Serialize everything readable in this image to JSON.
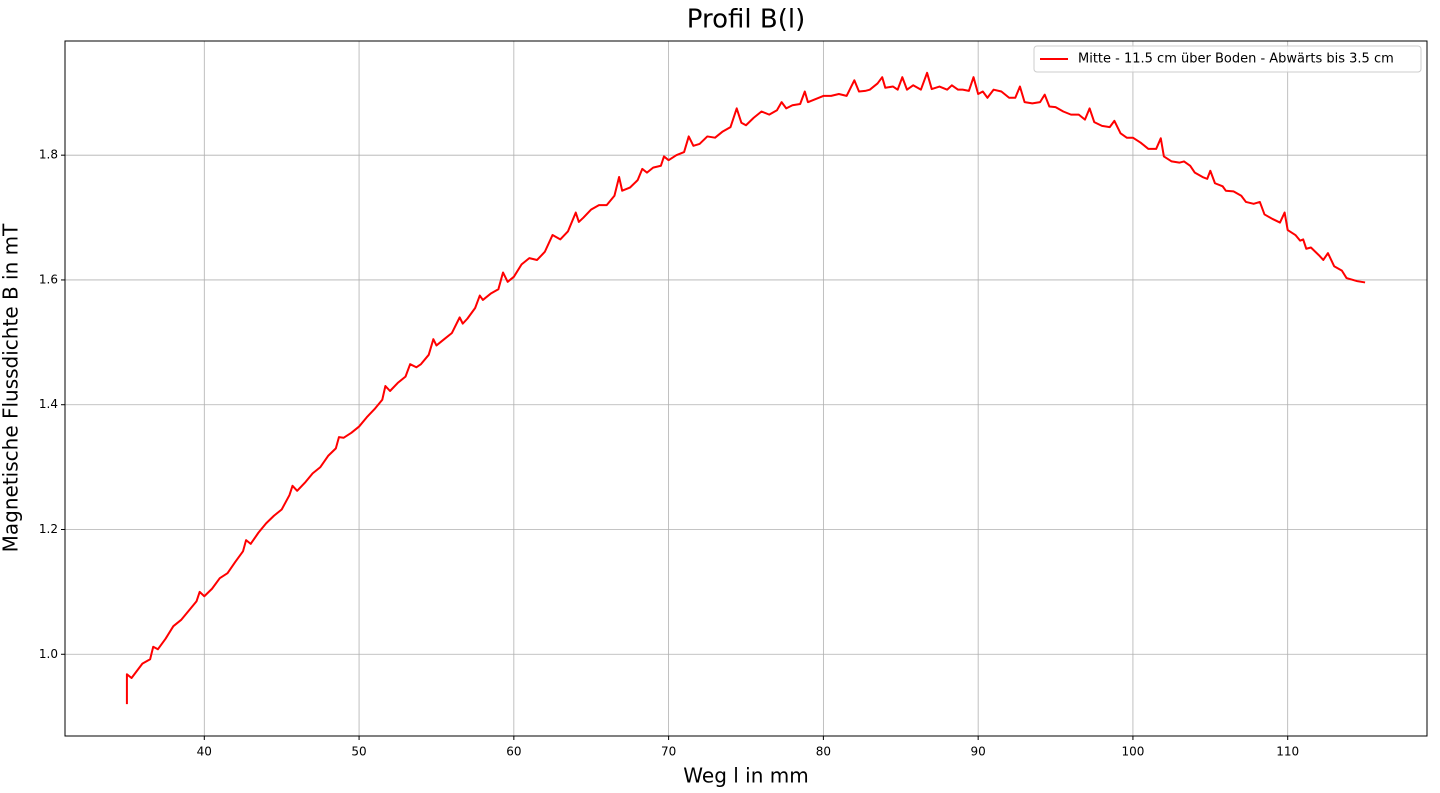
{
  "chart_data": {
    "type": "line",
    "title": "Profil B(l)",
    "xlabel": "Weg l in mm",
    "ylabel": "Magnetische Flussdichte B in mT",
    "xlim": [
      31,
      119
    ],
    "ylim": [
      0.869,
      1.983
    ],
    "xticks": [
      40,
      50,
      60,
      70,
      80,
      90,
      100,
      110
    ],
    "yticks": [
      {
        "value": 1.0,
        "label": "1.0"
      },
      {
        "value": 1.2,
        "label": "1.2"
      },
      {
        "value": 1.4,
        "label": "1.4"
      },
      {
        "value": 1.6,
        "label": "1.6"
      },
      {
        "value": 1.8,
        "label": "1.8"
      }
    ],
    "grid": true,
    "legend": "upper right",
    "x": [
      35.0,
      35.0,
      35.3,
      36,
      36.5,
      36.7,
      37,
      37.5,
      38,
      38.5,
      39,
      39.5,
      39.7,
      40,
      40.5,
      41,
      41.5,
      42,
      42.5,
      42.7,
      43,
      43.5,
      44,
      44.5,
      45,
      45.5,
      45.7,
      46,
      46.5,
      47,
      47.5,
      48,
      48.5,
      48.7,
      49,
      49.5,
      50,
      50.5,
      51,
      51.5,
      51.7,
      52,
      52.5,
      53,
      53.3,
      53.7,
      54,
      54.5,
      54.8,
      55,
      55.5,
      56,
      56.5,
      56.7,
      57,
      57.5,
      57.8,
      58,
      58.5,
      59,
      59.3,
      59.6,
      60,
      60.5,
      61,
      61.5,
      62,
      62.5,
      63,
      63.5,
      64,
      64.2,
      64.5,
      65,
      65.5,
      66,
      66.5,
      66.8,
      67,
      67.5,
      68,
      68.3,
      68.6,
      69,
      69.5,
      69.7,
      70,
      70.5,
      71,
      71.3,
      71.6,
      72,
      72.5,
      73,
      73.5,
      74,
      74.4,
      74.7,
      75,
      75.5,
      76,
      76.5,
      77,
      77.3,
      77.6,
      78,
      78.5,
      78.8,
      79,
      79.5,
      80,
      80.5,
      81,
      81.5,
      82,
      82.3,
      82.7,
      83,
      83.5,
      83.8,
      84,
      84.5,
      84.8,
      85.1,
      85.4,
      85.8,
      86.3,
      86.7,
      87,
      87.5,
      88,
      88.3,
      88.7,
      89,
      89.4,
      89.7,
      90,
      90.3,
      90.6,
      91,
      91.5,
      92,
      92.4,
      92.7,
      93,
      93.5,
      94,
      94.3,
      94.6,
      95,
      95.5,
      96,
      96.5,
      96.9,
      97.2,
      97.5,
      98,
      98.5,
      98.8,
      99.2,
      99.6,
      100,
      100.5,
      101,
      101.5,
      101.8,
      102,
      102.5,
      103,
      103.3,
      103.7,
      104,
      104.5,
      104.8,
      105,
      105.3,
      105.8,
      106,
      106.5,
      107,
      107.3,
      107.8,
      108.2,
      108.5,
      109,
      109.5,
      109.8,
      110,
      110.5,
      110.8,
      111,
      111.2,
      111.5,
      112,
      112.3,
      112.6,
      113,
      113.5,
      113.8,
      114.5,
      115
    ],
    "series": [
      {
        "name": "Mitte - 11.5 cm über Boden - Abwärts bis 3.5 cm",
        "color": "#ff0000",
        "values": [
          0.92,
          0.968,
          0.962,
          0.985,
          0.992,
          1.012,
          1.008,
          1.025,
          1.045,
          1.055,
          1.07,
          1.085,
          1.1,
          1.093,
          1.105,
          1.122,
          1.13,
          1.148,
          1.165,
          1.183,
          1.177,
          1.195,
          1.21,
          1.222,
          1.232,
          1.255,
          1.27,
          1.262,
          1.275,
          1.29,
          1.3,
          1.318,
          1.33,
          1.348,
          1.347,
          1.355,
          1.365,
          1.38,
          1.393,
          1.408,
          1.43,
          1.422,
          1.435,
          1.445,
          1.465,
          1.46,
          1.465,
          1.48,
          1.505,
          1.495,
          1.505,
          1.515,
          1.54,
          1.53,
          1.538,
          1.555,
          1.575,
          1.568,
          1.578,
          1.585,
          1.612,
          1.597,
          1.605,
          1.625,
          1.635,
          1.632,
          1.645,
          1.672,
          1.665,
          1.678,
          1.708,
          1.693,
          1.7,
          1.713,
          1.72,
          1.72,
          1.735,
          1.765,
          1.743,
          1.748,
          1.76,
          1.778,
          1.772,
          1.78,
          1.783,
          1.798,
          1.792,
          1.8,
          1.805,
          1.83,
          1.815,
          1.818,
          1.83,
          1.828,
          1.838,
          1.845,
          1.875,
          1.852,
          1.848,
          1.86,
          1.87,
          1.865,
          1.872,
          1.885,
          1.875,
          1.88,
          1.882,
          1.902,
          1.885,
          1.89,
          1.895,
          1.895,
          1.898,
          1.895,
          1.92,
          1.902,
          1.903,
          1.905,
          1.915,
          1.925,
          1.908,
          1.91,
          1.905,
          1.925,
          1.905,
          1.912,
          1.905,
          1.932,
          1.906,
          1.91,
          1.905,
          1.912,
          1.905,
          1.905,
          1.903,
          1.925,
          1.898,
          1.902,
          1.892,
          1.905,
          1.902,
          1.892,
          1.892,
          1.91,
          1.885,
          1.883,
          1.885,
          1.897,
          1.878,
          1.877,
          1.87,
          1.865,
          1.865,
          1.857,
          1.875,
          1.853,
          1.847,
          1.845,
          1.855,
          1.835,
          1.828,
          1.828,
          1.82,
          1.81,
          1.81,
          1.827,
          1.798,
          1.79,
          1.788,
          1.79,
          1.783,
          1.772,
          1.765,
          1.762,
          1.775,
          1.755,
          1.75,
          1.743,
          1.742,
          1.735,
          1.725,
          1.722,
          1.725,
          1.705,
          1.698,
          1.692,
          1.708,
          1.68,
          1.672,
          1.663,
          1.665,
          1.65,
          1.652,
          1.64,
          1.632,
          1.643,
          1.622,
          1.615,
          1.603,
          1.598,
          1.596
        ]
      }
    ]
  }
}
